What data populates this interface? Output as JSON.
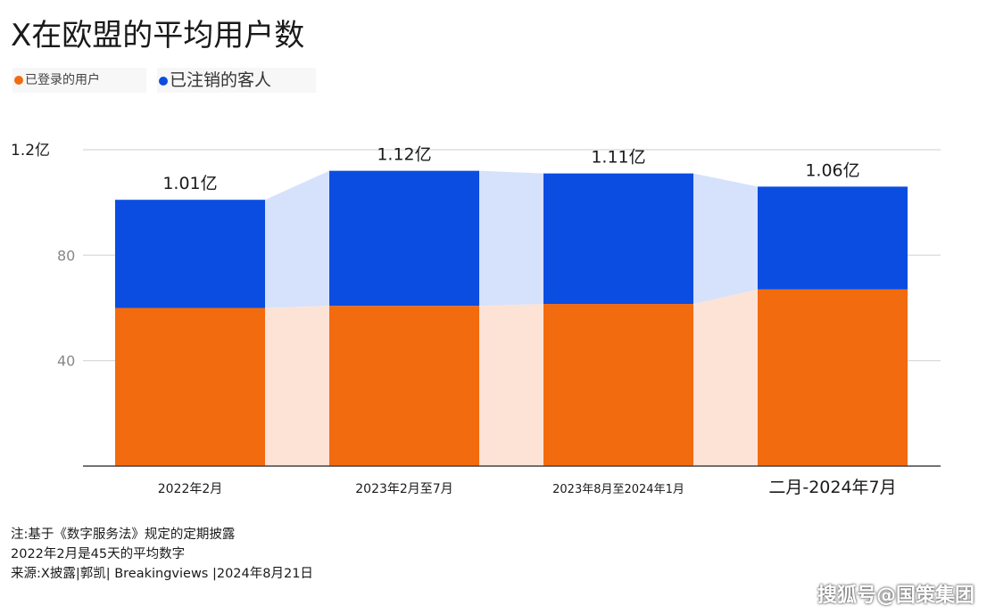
{
  "chart_data": {
    "type": "bar",
    "title": "X在欧盟的平均用户数",
    "legend": [
      {
        "name": "已登录的用户",
        "color": "#f26b0f"
      },
      {
        "name": "已注销的客人",
        "color": "#0a4de0"
      }
    ],
    "categories": [
      "2022年2月",
      "2023年2月至7月",
      "2023年8月至2024年1月",
      "二月-2024年7月"
    ],
    "series": [
      {
        "name": "已登录的用户",
        "values": [
          60,
          60.8,
          61.5,
          67
        ]
      },
      {
        "name": "已注销的客人",
        "values": [
          41,
          51.2,
          49.5,
          39
        ]
      }
    ],
    "totals_labels": [
      "1.01亿",
      "1.12亿",
      "1.11亿",
      "1.06亿"
    ],
    "y_tick_labels": [
      {
        "value": 40,
        "label": "40"
      },
      {
        "value": 80,
        "label": "80"
      },
      {
        "value": 120,
        "label": "1.2亿"
      }
    ],
    "ylim": [
      0,
      120
    ],
    "grid": true
  },
  "notes": [
    "注:基于《数字服务法》规定的定期披露",
    "2022年2月是45天的平均数字",
    "来源:X披露|郭凯| Breakingviews |2024年8月21日"
  ],
  "watermark": "搜狐号@国策集团"
}
